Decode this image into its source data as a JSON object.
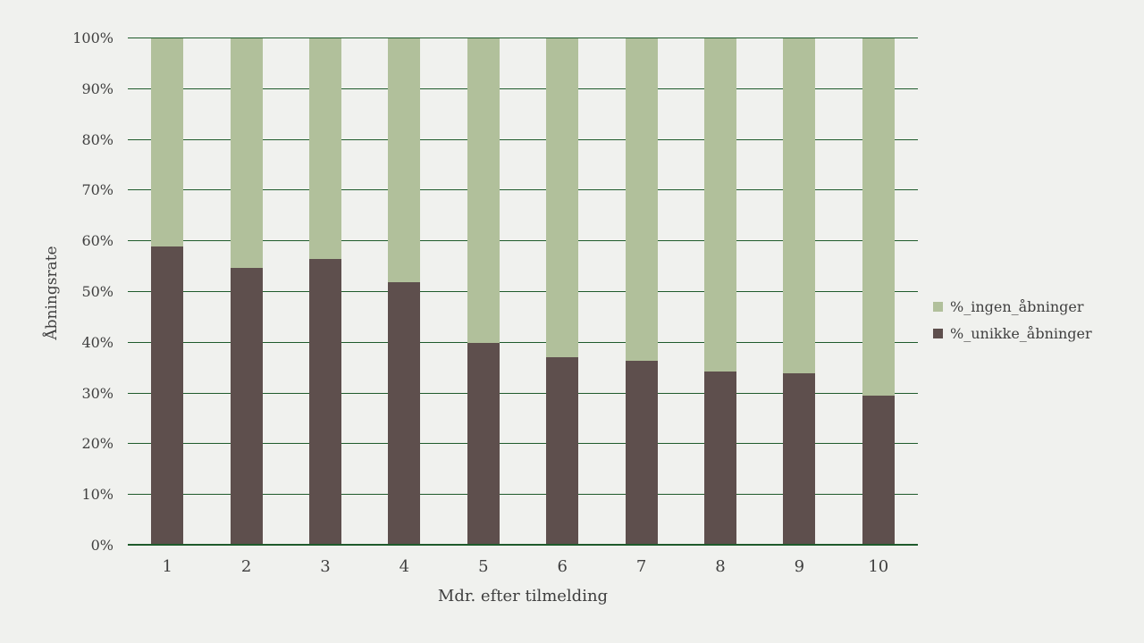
{
  "chart_data": {
    "type": "bar",
    "stacked": true,
    "stacked_percent": true,
    "title": "",
    "xlabel": "Mdr. efter tilmelding",
    "ylabel": "Åbningsrate",
    "categories": [
      "1",
      "2",
      "3",
      "4",
      "5",
      "6",
      "7",
      "8",
      "9",
      "10"
    ],
    "series": [
      {
        "name": "%_ingen_åbninger",
        "color": "#b1c09b",
        "stack_position": "top",
        "values": [
          41.0,
          45.2,
          43.5,
          48.1,
          60.1,
          62.8,
          63.6,
          65.7,
          66.1,
          70.4
        ]
      },
      {
        "name": "%_unikke_åbninger",
        "color": "#5e4f4d",
        "stack_position": "bottom",
        "values": [
          59.0,
          54.8,
          56.5,
          51.9,
          39.9,
          37.2,
          36.4,
          34.3,
          33.9,
          29.6
        ]
      }
    ],
    "y_ticks": [
      "0%",
      "10%",
      "20%",
      "30%",
      "40%",
      "50%",
      "60%",
      "70%",
      "80%",
      "90%",
      "100%"
    ],
    "ylim": [
      0,
      100
    ],
    "y_tick_step": 10,
    "grid": true,
    "gridline_color": "#1f5b2c",
    "legend_position": "right",
    "background_color": "#f0f1ee",
    "bar_color_top": "#b1c09b",
    "bar_color_bottom": "#5e4f4d",
    "axis_text_color": "#3f3f3f"
  }
}
